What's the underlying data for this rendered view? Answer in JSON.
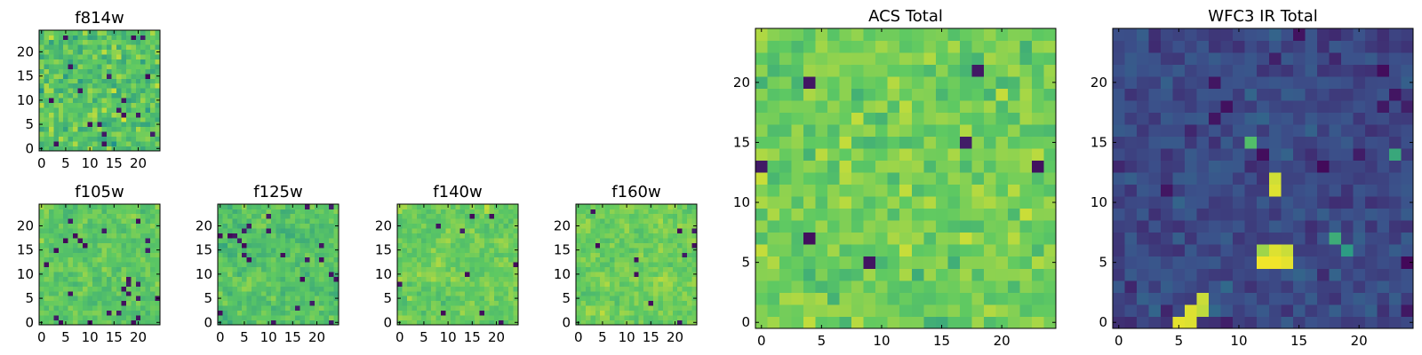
{
  "colormap": "viridis",
  "colormap_stops": [
    "#440154",
    "#3b528b",
    "#21918c",
    "#5ec962",
    "#fde725"
  ],
  "chart_data": [
    {
      "type": "heatmap",
      "title": "f814w",
      "grid_size": 25,
      "xlim": [
        -0.5,
        24.5
      ],
      "ylim": [
        -0.5,
        24.5
      ],
      "xticks": [
        0,
        5,
        10,
        15,
        20
      ],
      "yticks": [
        0,
        5,
        10,
        15,
        20
      ],
      "xtick_labels": [
        "0",
        "5",
        "10",
        "15",
        "20"
      ],
      "ytick_labels": [
        "0",
        "5",
        "10",
        "15",
        "20"
      ],
      "mean_level": 0.72,
      "noise": 0.24,
      "dark_pixel_fraction": 0.03,
      "blur": 0,
      "bright_spots": [],
      "seed": 11
    },
    {
      "type": "heatmap",
      "title": "f105w",
      "grid_size": 25,
      "xlim": [
        -0.5,
        24.5
      ],
      "ylim": [
        -0.5,
        24.5
      ],
      "xticks": [
        0,
        5,
        10,
        15,
        20
      ],
      "yticks": [
        0,
        5,
        10,
        15,
        20
      ],
      "xtick_labels": [
        "0",
        "5",
        "10",
        "15",
        "20"
      ],
      "ytick_labels": [
        "0",
        "5",
        "10",
        "15",
        "20"
      ],
      "mean_level": 0.74,
      "noise": 0.22,
      "dark_pixel_fraction": 0.02,
      "blur": 1,
      "bright_spots": [],
      "seed": 23
    },
    {
      "type": "heatmap",
      "title": "f125w",
      "grid_size": 25,
      "xlim": [
        -0.5,
        24.5
      ],
      "ylim": [
        -0.5,
        24.5
      ],
      "xticks": [
        0,
        5,
        10,
        15,
        20
      ],
      "yticks": [
        0,
        5,
        10,
        15,
        20
      ],
      "xtick_labels": [
        "0",
        "5",
        "10",
        "15",
        "20"
      ],
      "ytick_labels": [
        "0",
        "5",
        "10",
        "15",
        "20"
      ],
      "mean_level": 0.72,
      "noise": 0.24,
      "dark_pixel_fraction": 0.03,
      "blur": 1,
      "bright_spots": [],
      "seed": 37
    },
    {
      "type": "heatmap",
      "title": "f140w",
      "grid_size": 25,
      "xlim": [
        -0.5,
        24.5
      ],
      "ylim": [
        -0.5,
        24.5
      ],
      "xticks": [
        0,
        5,
        10,
        15,
        20
      ],
      "yticks": [
        0,
        5,
        10,
        15,
        20
      ],
      "xtick_labels": [
        "0",
        "5",
        "10",
        "15",
        "20"
      ],
      "ytick_labels": [
        "0",
        "5",
        "10",
        "15",
        "20"
      ],
      "mean_level": 0.76,
      "noise": 0.22,
      "dark_pixel_fraction": 0.02,
      "blur": 1,
      "bright_spots": [],
      "seed": 51
    },
    {
      "type": "heatmap",
      "title": "f160w",
      "grid_size": 25,
      "xlim": [
        -0.5,
        24.5
      ],
      "ylim": [
        -0.5,
        24.5
      ],
      "xticks": [
        0,
        5,
        10,
        15,
        20
      ],
      "yticks": [
        0,
        5,
        10,
        15,
        20
      ],
      "xtick_labels": [
        "0",
        "5",
        "10",
        "15",
        "20"
      ],
      "ytick_labels": [
        "0",
        "5",
        "10",
        "15",
        "20"
      ],
      "mean_level": 0.78,
      "noise": 0.2,
      "dark_pixel_fraction": 0.02,
      "blur": 1,
      "bright_spots": [],
      "seed": 67
    },
    {
      "type": "heatmap",
      "title": "ACS Total",
      "grid_size": 25,
      "xlim": [
        -0.5,
        24.5
      ],
      "ylim": [
        -0.5,
        24.5
      ],
      "xticks": [
        0,
        5,
        10,
        15,
        20
      ],
      "yticks": [
        0,
        5,
        10,
        15,
        20
      ],
      "xtick_labels": [
        "0",
        "5",
        "10",
        "15",
        "20"
      ],
      "ytick_labels": [
        "0",
        "5",
        "10",
        "15",
        "20"
      ],
      "mean_level": 0.78,
      "noise": 0.18,
      "dark_pixel_fraction": 0.015,
      "blur": 0,
      "bright_spots": [],
      "seed": 83
    },
    {
      "type": "heatmap",
      "title": "WFC3 IR Total",
      "grid_size": 25,
      "xlim": [
        -0.5,
        24.5
      ],
      "ylim": [
        -0.5,
        24.5
      ],
      "xticks": [
        0,
        5,
        10,
        15,
        20
      ],
      "yticks": [
        0,
        5,
        10,
        15,
        20
      ],
      "xtick_labels": [
        "0",
        "5",
        "10",
        "15",
        "20"
      ],
      "ytick_labels": [
        "0",
        "5",
        "10",
        "15",
        "20"
      ],
      "mean_level": 0.22,
      "noise": 0.13,
      "dark_pixel_fraction": 0.03,
      "blur": 0,
      "bright_spots": [
        {
          "x": 12,
          "y": 5,
          "value": 0.98
        },
        {
          "x": 13,
          "y": 5,
          "value": 0.98
        },
        {
          "x": 14,
          "y": 5,
          "value": 0.96
        },
        {
          "x": 13,
          "y": 6,
          "value": 0.95
        },
        {
          "x": 14,
          "y": 6,
          "value": 0.92
        },
        {
          "x": 12,
          "y": 6,
          "value": 0.85
        },
        {
          "x": 6,
          "y": 1,
          "value": 0.95
        },
        {
          "x": 7,
          "y": 1,
          "value": 0.9
        },
        {
          "x": 7,
          "y": 2,
          "value": 0.92
        },
        {
          "x": 5,
          "y": 0,
          "value": 0.96
        },
        {
          "x": 6,
          "y": 0,
          "value": 0.95
        },
        {
          "x": 13,
          "y": 11,
          "value": 0.95
        },
        {
          "x": 13,
          "y": 12,
          "value": 0.93
        },
        {
          "x": 11,
          "y": 15,
          "value": 0.7
        },
        {
          "x": 18,
          "y": 7,
          "value": 0.62
        },
        {
          "x": 19,
          "y": 6,
          "value": 0.55
        },
        {
          "x": 23,
          "y": 14,
          "value": 0.6
        }
      ],
      "seed": 97
    }
  ]
}
